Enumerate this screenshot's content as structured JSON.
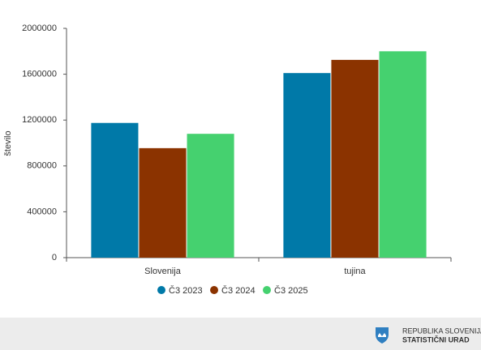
{
  "chart_data": {
    "type": "bar",
    "y_label": "število",
    "categories": [
      "Slovenija",
      "tujina"
    ],
    "series": [
      {
        "name": "Č3 2023",
        "color": "#0079a8",
        "values": [
          1175000,
          1610000
        ]
      },
      {
        "name": "Č3 2024",
        "color": "#8b3300",
        "values": [
          955000,
          1725000
        ]
      },
      {
        "name": "Č3 2025",
        "color": "#45d16f",
        "values": [
          1080000,
          1800000
        ]
      }
    ],
    "ylim": [
      0,
      2000000
    ],
    "yticks": [
      0,
      400000,
      800000,
      1200000,
      1600000,
      2000000
    ],
    "grid": false,
    "legend": "bottom"
  },
  "footer": {
    "line1": "REPUBLIKA SLOVENIJA",
    "line2": "STATISTIČNI URAD"
  }
}
